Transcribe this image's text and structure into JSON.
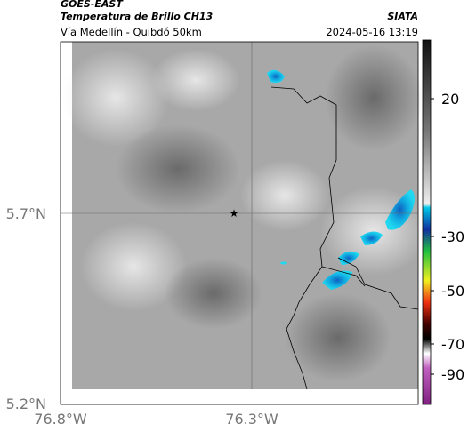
{
  "header": {
    "source": "GOES-EAST",
    "title": "Temperatura de Brillo CH13",
    "org": "SIATA",
    "subtitle": "Vía Medellín - Quibdó 50km",
    "timestamp": "2024-05-16 13:19"
  },
  "axes": {
    "lat_ticks": [
      "5.7°N",
      "5.2°N"
    ],
    "lon_ticks": [
      "76.8°W",
      "76.3°W"
    ]
  },
  "colorbar": {
    "ticks": [
      20,
      -30,
      -50,
      -70,
      -90
    ]
  }
}
